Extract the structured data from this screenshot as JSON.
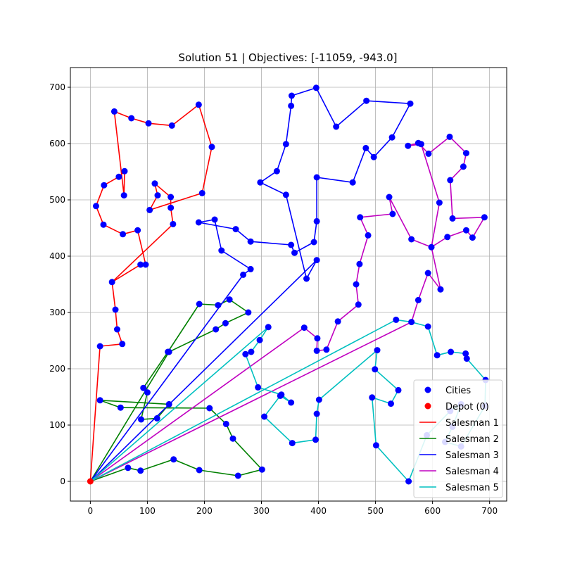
{
  "chart_data": {
    "type": "scatter",
    "title": "Solution 51 | Objectives: [-11059, -943.0]",
    "xlabel": "",
    "ylabel": "",
    "xlim": [
      -35,
      730
    ],
    "ylim": [
      -35,
      735
    ],
    "x_ticks": [
      0,
      100,
      200,
      300,
      400,
      500,
      600,
      700
    ],
    "y_ticks": [
      0,
      100,
      200,
      300,
      400,
      500,
      600,
      700
    ],
    "grid": true,
    "legend_position": "lower-right",
    "depot": {
      "name": "Depot (0)",
      "x": 0,
      "y": 0,
      "color": "#ff0000"
    },
    "cities_legend": {
      "name": "Cities",
      "color": "#0000ff"
    },
    "series": [
      {
        "name": "Salesman 1",
        "color": "#ff0000",
        "route": [
          [
            0,
            0
          ],
          [
            17,
            240
          ],
          [
            56,
            244
          ],
          [
            47,
            270
          ],
          [
            44,
            305
          ],
          [
            38,
            354
          ],
          [
            88,
            385
          ],
          [
            97,
            385
          ],
          [
            83,
            446
          ],
          [
            57,
            439
          ],
          [
            23,
            456
          ],
          [
            10,
            489
          ],
          [
            24,
            526
          ],
          [
            50,
            541
          ],
          [
            60,
            551
          ],
          [
            59,
            508
          ],
          [
            42,
            657
          ],
          [
            72,
            645
          ],
          [
            102,
            636
          ],
          [
            143,
            632
          ],
          [
            190,
            669
          ],
          [
            213,
            594
          ],
          [
            196,
            512
          ],
          [
            104,
            482
          ],
          [
            118,
            508
          ],
          [
            113,
            529
          ],
          [
            141,
            505
          ],
          [
            141,
            486
          ],
          [
            145,
            457
          ],
          [
            38,
            354
          ]
        ]
      },
      {
        "name": "Salesman 2",
        "color": "#008000",
        "route": [
          [
            0,
            0
          ],
          [
            138,
            230
          ],
          [
            220,
            270
          ],
          [
            237,
            281
          ],
          [
            277,
            300
          ],
          [
            244,
            323
          ],
          [
            224,
            313
          ],
          [
            191,
            315
          ],
          [
            136,
            230
          ],
          [
            93,
            166
          ],
          [
            100,
            158
          ],
          [
            89,
            110
          ],
          [
            117,
            112
          ],
          [
            138,
            137
          ],
          [
            17,
            144
          ],
          [
            53,
            131
          ],
          [
            209,
            130
          ],
          [
            238,
            102
          ],
          [
            250,
            76
          ],
          [
            301,
            21
          ],
          [
            259,
            10
          ],
          [
            191,
            20
          ],
          [
            146,
            39
          ],
          [
            88,
            19
          ],
          [
            66,
            24
          ],
          [
            0,
            0
          ]
        ]
      },
      {
        "name": "Salesman 3",
        "color": "#0000ff",
        "route": [
          [
            0,
            0
          ],
          [
            268,
            367
          ],
          [
            281,
            377
          ],
          [
            230,
            410
          ],
          [
            218,
            465
          ],
          [
            190,
            460
          ],
          [
            255,
            448
          ],
          [
            281,
            426
          ],
          [
            352,
            420
          ],
          [
            358,
            406
          ],
          [
            392,
            425
          ],
          [
            397,
            462
          ],
          [
            397,
            540
          ],
          [
            460,
            531
          ],
          [
            483,
            592
          ],
          [
            497,
            576
          ],
          [
            529,
            611
          ],
          [
            561,
            671
          ],
          [
            484,
            676
          ],
          [
            431,
            630
          ],
          [
            396,
            699
          ],
          [
            353,
            685
          ],
          [
            352,
            667
          ],
          [
            343,
            599
          ],
          [
            327,
            551
          ],
          [
            298,
            531
          ],
          [
            343,
            509
          ],
          [
            379,
            360
          ],
          [
            397,
            393
          ],
          [
            0,
            0
          ]
        ]
      },
      {
        "name": "Salesman 4",
        "color": "#c000c0",
        "route": [
          [
            0,
            0
          ],
          [
            375,
            273
          ],
          [
            398,
            254
          ],
          [
            397,
            232
          ],
          [
            414,
            234
          ],
          [
            434,
            284
          ],
          [
            470,
            314
          ],
          [
            466,
            350
          ],
          [
            472,
            386
          ],
          [
            487,
            437
          ],
          [
            473,
            469
          ],
          [
            530,
            475
          ],
          [
            524,
            505
          ],
          [
            563,
            430
          ],
          [
            598,
            416
          ],
          [
            612,
            495
          ],
          [
            580,
            599
          ],
          [
            557,
            596
          ],
          [
            575,
            601
          ],
          [
            593,
            582
          ],
          [
            630,
            612
          ],
          [
            659,
            583
          ],
          [
            654,
            559
          ],
          [
            631,
            535
          ],
          [
            635,
            467
          ],
          [
            691,
            469
          ],
          [
            670,
            433
          ],
          [
            659,
            446
          ],
          [
            626,
            434
          ],
          [
            598,
            416
          ],
          [
            614,
            341
          ],
          [
            592,
            370
          ],
          [
            575,
            322
          ],
          [
            563,
            283
          ],
          [
            0,
            0
          ]
        ]
      },
      {
        "name": "Salesman 5",
        "color": "#00c0c0",
        "route": [
          [
            0,
            0
          ],
          [
            312,
            274
          ],
          [
            297,
            251
          ],
          [
            282,
            230
          ],
          [
            272,
            226
          ],
          [
            294,
            167
          ],
          [
            335,
            154
          ],
          [
            352,
            140
          ],
          [
            333,
            152
          ],
          [
            305,
            115
          ],
          [
            354,
            68
          ],
          [
            395,
            74
          ],
          [
            397,
            120
          ],
          [
            401,
            145
          ],
          [
            503,
            233
          ],
          [
            499,
            199
          ],
          [
            540,
            162
          ],
          [
            527,
            138
          ],
          [
            494,
            149
          ],
          [
            501,
            64
          ],
          [
            558,
            0
          ],
          [
            590,
            82
          ],
          [
            631,
            125
          ],
          [
            650,
            137
          ],
          [
            635,
            97
          ],
          [
            622,
            70
          ],
          [
            650,
            62
          ],
          [
            692,
            134
          ],
          [
            693,
            180
          ],
          [
            660,
            218
          ],
          [
            658,
            227
          ],
          [
            632,
            230
          ],
          [
            608,
            224
          ],
          [
            592,
            275
          ],
          [
            563,
            283
          ],
          [
            536,
            287
          ],
          [
            0,
            0
          ]
        ]
      }
    ]
  }
}
